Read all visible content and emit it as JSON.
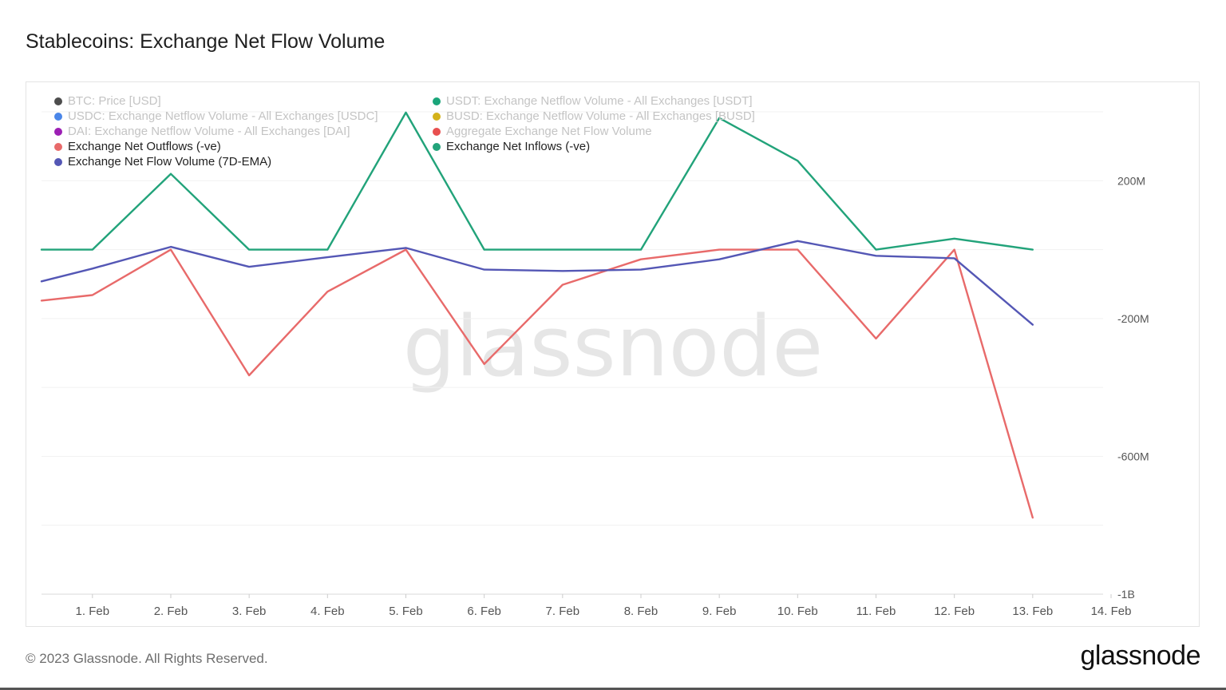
{
  "title": "Stablecoins: Exchange Net Flow Volume",
  "footer": "© 2023 Glassnode. All Rights Reserved.",
  "brand": "glassnode",
  "watermark": "glassnode",
  "legend": [
    {
      "label": "BTC: Price [USD]",
      "color": "#4d4d4d",
      "active": false
    },
    {
      "label": "USDT: Exchange Netflow Volume - All Exchanges [USDT]",
      "color": "#1aa57a",
      "active": false
    },
    {
      "label": "USDC: Exchange Netflow Volume - All Exchanges [USDC]",
      "color": "#4a86e8",
      "active": false
    },
    {
      "label": "BUSD: Exchange Netflow Volume - All Exchanges [BUSD]",
      "color": "#d4b21a",
      "active": false
    },
    {
      "label": "DAI: Exchange Netflow Volume - All Exchanges [DAI]",
      "color": "#9c1fb4",
      "active": false
    },
    {
      "label": "Aggregate Exchange Net Flow Volume",
      "color": "#e8504f",
      "active": false
    },
    {
      "label": "Exchange Net Outflows (-ve)",
      "color": "#e86a6a",
      "active": true
    },
    {
      "label": "Exchange Net Inflows (-ve)",
      "color": "#22a37a",
      "active": true
    },
    {
      "label": "Exchange Net Flow Volume (7D-EMA)",
      "color": "#5457b5",
      "active": true
    }
  ],
  "chart_data": {
    "type": "line",
    "title": "Stablecoins: Exchange Net Flow Volume",
    "x_tick_labels": [
      "1. Feb",
      "2. Feb",
      "3. Feb",
      "4. Feb",
      "5. Feb",
      "6. Feb",
      "7. Feb",
      "8. Feb",
      "9. Feb",
      "10. Feb",
      "11. Feb",
      "12. Feb",
      "13. Feb",
      "14. Feb"
    ],
    "y_tick_labels": [
      "200M",
      "-200M",
      "-600M",
      "-1B"
    ],
    "y_ticks": [
      200,
      -200,
      -600,
      -1000
    ],
    "y_unit": "M",
    "ylim": [
      -1000,
      400
    ],
    "xlim": [
      0.35,
      14
    ],
    "x": [
      0.35,
      1,
      2,
      3,
      4,
      5,
      6,
      7,
      8,
      9,
      10,
      11,
      12,
      13
    ],
    "series": [
      {
        "name": "Exchange Net Inflows (-ve)",
        "color": "#22a37a",
        "values": [
          0,
          0,
          220,
          0,
          0,
          398,
          0,
          0,
          0,
          382,
          258,
          0,
          32,
          0
        ]
      },
      {
        "name": "Exchange Net Outflows (-ve)",
        "color": "#e86a6a",
        "values": [
          -148,
          -132,
          0,
          -365,
          -122,
          0,
          -332,
          -102,
          -28,
          0,
          0,
          -258,
          0,
          -778
        ]
      },
      {
        "name": "Exchange Net Flow Volume (7D-EMA)",
        "color": "#5457b5",
        "values": [
          -92,
          -55,
          8,
          -50,
          -22,
          5,
          -58,
          -62,
          -58,
          -28,
          25,
          -18,
          -25,
          -218
        ]
      }
    ],
    "grid": true,
    "y_axis_position": "right",
    "legend_position": "top-left"
  }
}
